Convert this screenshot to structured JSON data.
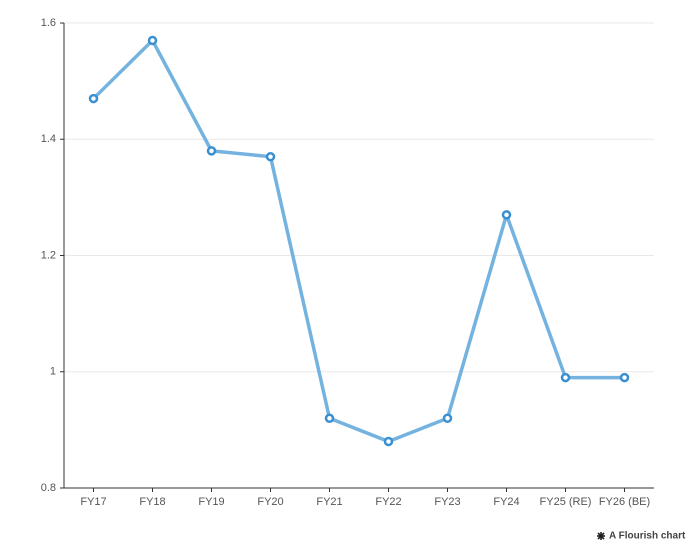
{
  "chart_data": {
    "type": "line",
    "categories": [
      "FY17",
      "FY18",
      "FY19",
      "FY20",
      "FY21",
      "FY22",
      "FY23",
      "FY24",
      "FY25 (RE)",
      "FY26 (BE)"
    ],
    "series": [
      {
        "color": "#74b3e0",
        "values": [
          1.47,
          1.57,
          1.38,
          1.37,
          0.92,
          0.88,
          0.92,
          1.27,
          0.99,
          0.99
        ]
      }
    ],
    "ylim": [
      0.8,
      1.6
    ],
    "yticks": [
      0.8,
      1,
      1.2,
      1.4,
      1.6
    ],
    "grid": true,
    "footer": "A Flourish chart"
  }
}
